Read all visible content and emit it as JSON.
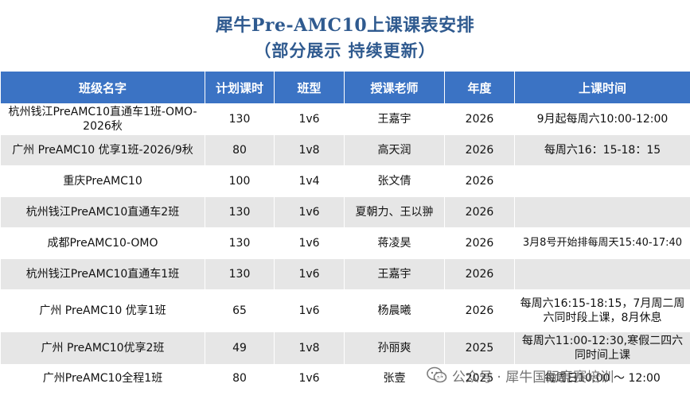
{
  "title": {
    "line1": "犀牛Pre-AMC10上课课表安排",
    "line2": "（部分展示  持续更新）"
  },
  "table": {
    "headers": [
      "班级名字",
      "计划课时",
      "班型",
      "授课老师",
      "年度",
      "上课时间"
    ],
    "rows": [
      {
        "name": "杭州钱江PreAMC10直通车1班-OMO-2026秋",
        "hours": "130",
        "type": "1v6",
        "teacher": "王嘉宇",
        "year": "2026",
        "time": "9月起每周六10:00-12:00"
      },
      {
        "name": "广州 PreAMC10 优享1班-2026/9秋",
        "hours": "80",
        "type": "1v8",
        "teacher": "高天润",
        "year": "2026",
        "time": "每周六16：15-18：15"
      },
      {
        "name": "重庆PreAMC10",
        "hours": "100",
        "type": "1v4",
        "teacher": "张文倩",
        "year": "2026",
        "time": ""
      },
      {
        "name": "杭州钱江PreAMC10直通车2班",
        "hours": "130",
        "type": "1v6",
        "teacher": "夏朝力、王以翀",
        "year": "2026",
        "time": ""
      },
      {
        "name": "成都PreAMC10-OMO",
        "hours": "130",
        "type": "1v6",
        "teacher": "蒋凌昊",
        "year": "2026",
        "time": "3月8号开始排每周天15:40-17:40"
      },
      {
        "name": "杭州钱江PreAMC10直通车1班",
        "hours": "130",
        "type": "1v6",
        "teacher": "王嘉宇",
        "year": "2026",
        "time": ""
      },
      {
        "name": "广州 PreAMC10 优享1班",
        "hours": "65",
        "type": "1v6",
        "teacher": "杨晨曦",
        "year": "2026",
        "time": "每周六16:15-18:15，7月周二周六同时段上课，8月休息"
      },
      {
        "name": "广州 PreAMC10优享2班",
        "hours": "49",
        "type": "1v8",
        "teacher": "孙丽爽",
        "year": "2025",
        "time": "每周六11:00-12:30,寒假二四六同时间上课"
      },
      {
        "name": "广州PreAMC10全程1班",
        "hours": "80",
        "type": "1v6",
        "teacher": "张壹",
        "year": "2025",
        "time": "每周日10:00 ～ 12:00"
      }
    ]
  },
  "watermark": {
    "text": "公众号 · 犀牛国际竞赛培训",
    "icon": "wechat-icon"
  }
}
